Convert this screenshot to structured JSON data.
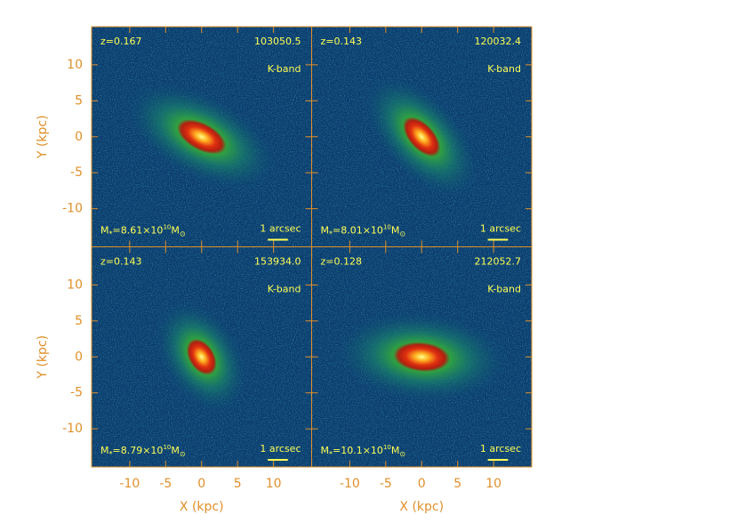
{
  "chart_data": {
    "type": "image-grid",
    "xlabel": "X (kpc)",
    "ylabel": "Y (kpc)",
    "xlim": [
      -15.3,
      15.3
    ],
    "ylim": [
      -15.3,
      15.3
    ],
    "xticks": [
      -10,
      -5,
      0,
      5,
      10
    ],
    "yticks": [
      -10,
      -5,
      0,
      5,
      10
    ],
    "band": "K-band",
    "scale_bar": "1 arcsec",
    "mass_label": {
      "symbol": "M",
      "subscript": "*",
      "equals": "=",
      "times": "×10",
      "exponent": "10",
      "sun_symbol": "M",
      "sun_subscript": "⊙"
    },
    "panels": [
      {
        "redshift": "z=0.167",
        "id": "103050.5",
        "mass": "8.61"
      },
      {
        "redshift": "z=0.143",
        "id": "120032.4",
        "mass": "8.01"
      },
      {
        "redshift": "z=0.143",
        "id": "153934.0",
        "mass": "8.79"
      },
      {
        "redshift": "z=0.128",
        "id": "212052.7",
        "mass": "10.1"
      }
    ]
  }
}
